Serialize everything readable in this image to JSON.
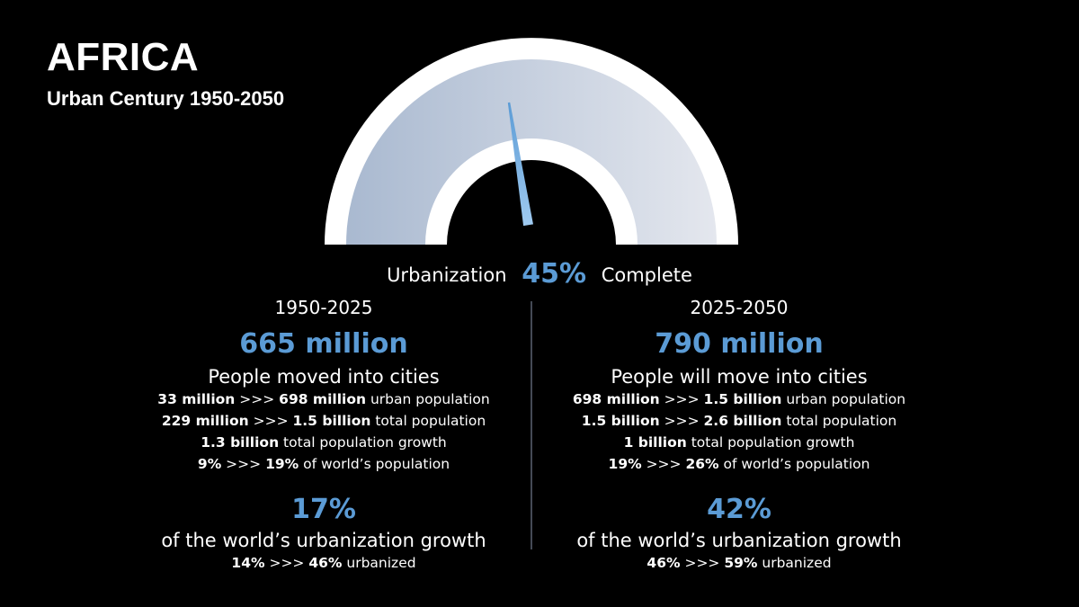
{
  "title": "AFRICA",
  "subtitle": "Urban Century 1950-2050",
  "gauge": {
    "value_percent": 45,
    "needle_color": "#5b9bd5",
    "fill_start": "#a9b9d0",
    "fill_end": "#e4e7ee"
  },
  "urbanization": {
    "prefix": "Urbanization",
    "value": "45%",
    "suffix": "Complete"
  },
  "accent_color": "#5b9bd5",
  "left": {
    "period": "1950-2025",
    "headline": "665 million",
    "lead": "People moved into cities",
    "stats": [
      {
        "a": "33 million",
        "sep": " >>> ",
        "b": "698 million",
        "rest": " urban population"
      },
      {
        "a": "229 million",
        "sep": " >>> ",
        "b": "1.5 billion",
        "rest": " total population"
      },
      {
        "a": "1.3 billion",
        "rest": " total population growth"
      },
      {
        "a": "9%",
        "sep": " >>> ",
        "b": "19%",
        "rest": " of world’s population"
      }
    ],
    "share": "17%",
    "share_label": "of the world’s urbanization growth",
    "urbanized": {
      "a": "14%",
      "sep": " >>> ",
      "b": "46%",
      "rest": " urbanized"
    }
  },
  "right": {
    "period": "2025-2050",
    "headline": "790 million",
    "lead": "People will move into cities",
    "stats": [
      {
        "a": "698 million",
        "sep": " >>> ",
        "b": "1.5 billion",
        "rest": " urban population"
      },
      {
        "a": "1.5 billion",
        "sep": " >>> ",
        "b": "2.6 billion",
        "rest": " total population"
      },
      {
        "a": "1 billion",
        "rest": " total population growth"
      },
      {
        "a": "19%",
        "sep": " >>> ",
        "b": "26%",
        "rest": " of world’s population"
      }
    ],
    "share": "42%",
    "share_label": "of the world’s urbanization growth",
    "urbanized": {
      "a": "46%",
      "sep": " >>> ",
      "b": "59%",
      "rest": " urbanized"
    }
  }
}
